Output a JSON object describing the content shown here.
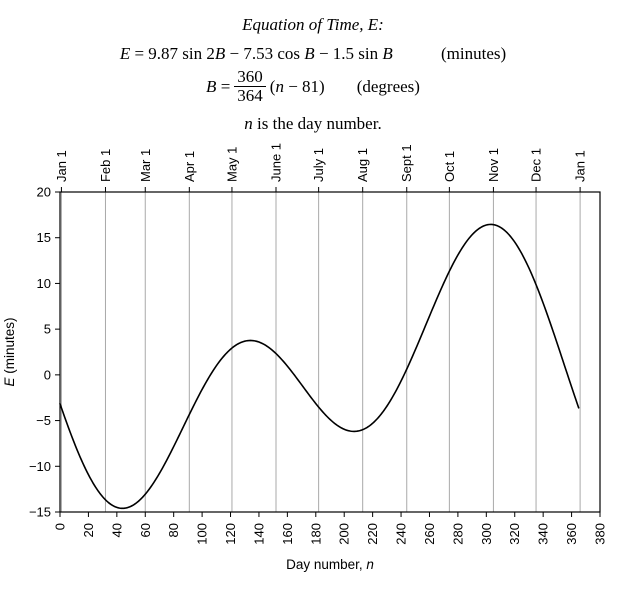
{
  "header": {
    "title_parts": [
      {
        "t": "Equation of Time, E:",
        "i": true
      }
    ],
    "eq1_parts": [
      {
        "t": "E",
        "i": true
      },
      {
        "t": " = 9.87 sin 2",
        "i": false
      },
      {
        "t": "B",
        "i": true
      },
      {
        "t": " − 7.53 cos ",
        "i": false
      },
      {
        "t": "B",
        "i": true
      },
      {
        "t": " − 1.5 sin ",
        "i": false
      },
      {
        "t": "B",
        "i": true
      }
    ],
    "eq1_unit": "(minutes)",
    "eq2_lhs_parts": [
      {
        "t": "B",
        "i": true
      },
      {
        "t": " = ",
        "i": false
      }
    ],
    "eq2_frac": {
      "num": "360",
      "den": "364"
    },
    "eq2_rhs_parts": [
      {
        "t": "(",
        "i": false
      },
      {
        "t": "n",
        "i": true
      },
      {
        "t": " − 81)",
        "i": false
      }
    ],
    "eq2_unit": "(degrees)",
    "note_parts": [
      {
        "t": "n",
        "i": true
      },
      {
        "t": " is the day number.",
        "i": false
      }
    ]
  },
  "chart_data": {
    "type": "line",
    "title": "Equation of Time, E:",
    "xlabel": "Day number, n",
    "xlabel_parts": [
      {
        "t": "Day number, ",
        "i": false
      },
      {
        "t": "n",
        "i": true
      }
    ],
    "ylabel": "E (minutes)",
    "ylabel_parts": [
      {
        "t": "E",
        "i": true
      },
      {
        "t": " (minutes)",
        "i": false
      }
    ],
    "xlim": [
      0,
      380
    ],
    "ylim": [
      -15,
      20
    ],
    "x_ticks": [
      0,
      20,
      40,
      60,
      80,
      100,
      120,
      140,
      160,
      180,
      200,
      220,
      240,
      260,
      280,
      300,
      320,
      340,
      360,
      380
    ],
    "y_ticks": [
      20,
      15,
      10,
      5,
      0,
      -5,
      -10,
      -15
    ],
    "months": [
      {
        "label": "Jan 1",
        "day": 1
      },
      {
        "label": "Feb 1",
        "day": 32
      },
      {
        "label": "Mar 1",
        "day": 60
      },
      {
        "label": "Apr 1",
        "day": 91
      },
      {
        "label": "May 1",
        "day": 121
      },
      {
        "label": "June 1",
        "day": 152
      },
      {
        "label": "July 1",
        "day": 182
      },
      {
        "label": "Aug 1",
        "day": 213
      },
      {
        "label": "Sept 1",
        "day": 244
      },
      {
        "label": "Oct 1",
        "day": 274
      },
      {
        "label": "Nov 1",
        "day": 305
      },
      {
        "label": "Dec 1",
        "day": 335
      },
      {
        "label": "Jan 1",
        "day": 366
      }
    ],
    "series": [
      {
        "name": "Equation of time E(n)",
        "formula": "E = 9.87 sin 2B − 7.53 cos B − 1.5 sin B (minutes); B = (360/364)(n − 81) degrees",
        "coeffs": {
          "a1": 9.87,
          "a2": 7.53,
          "a3": 1.5,
          "k": 0.989010989,
          "n_offset": 81
        },
        "n_range": [
          0,
          365
        ],
        "key_points": [
          {
            "n": 0,
            "E": -3.2
          },
          {
            "n": 42,
            "E": -14.6
          },
          {
            "n": 133,
            "E": 3.8
          },
          {
            "n": 208,
            "E": -6.2
          },
          {
            "n": 306,
            "E": 16.4
          },
          {
            "n": 365,
            "E": -3.6
          }
        ]
      }
    ],
    "grid": "vertical-month-lines",
    "legend": "none",
    "curve_color": "#000000",
    "grid_color": "#a9a9a9",
    "axis_color": "#000000"
  }
}
